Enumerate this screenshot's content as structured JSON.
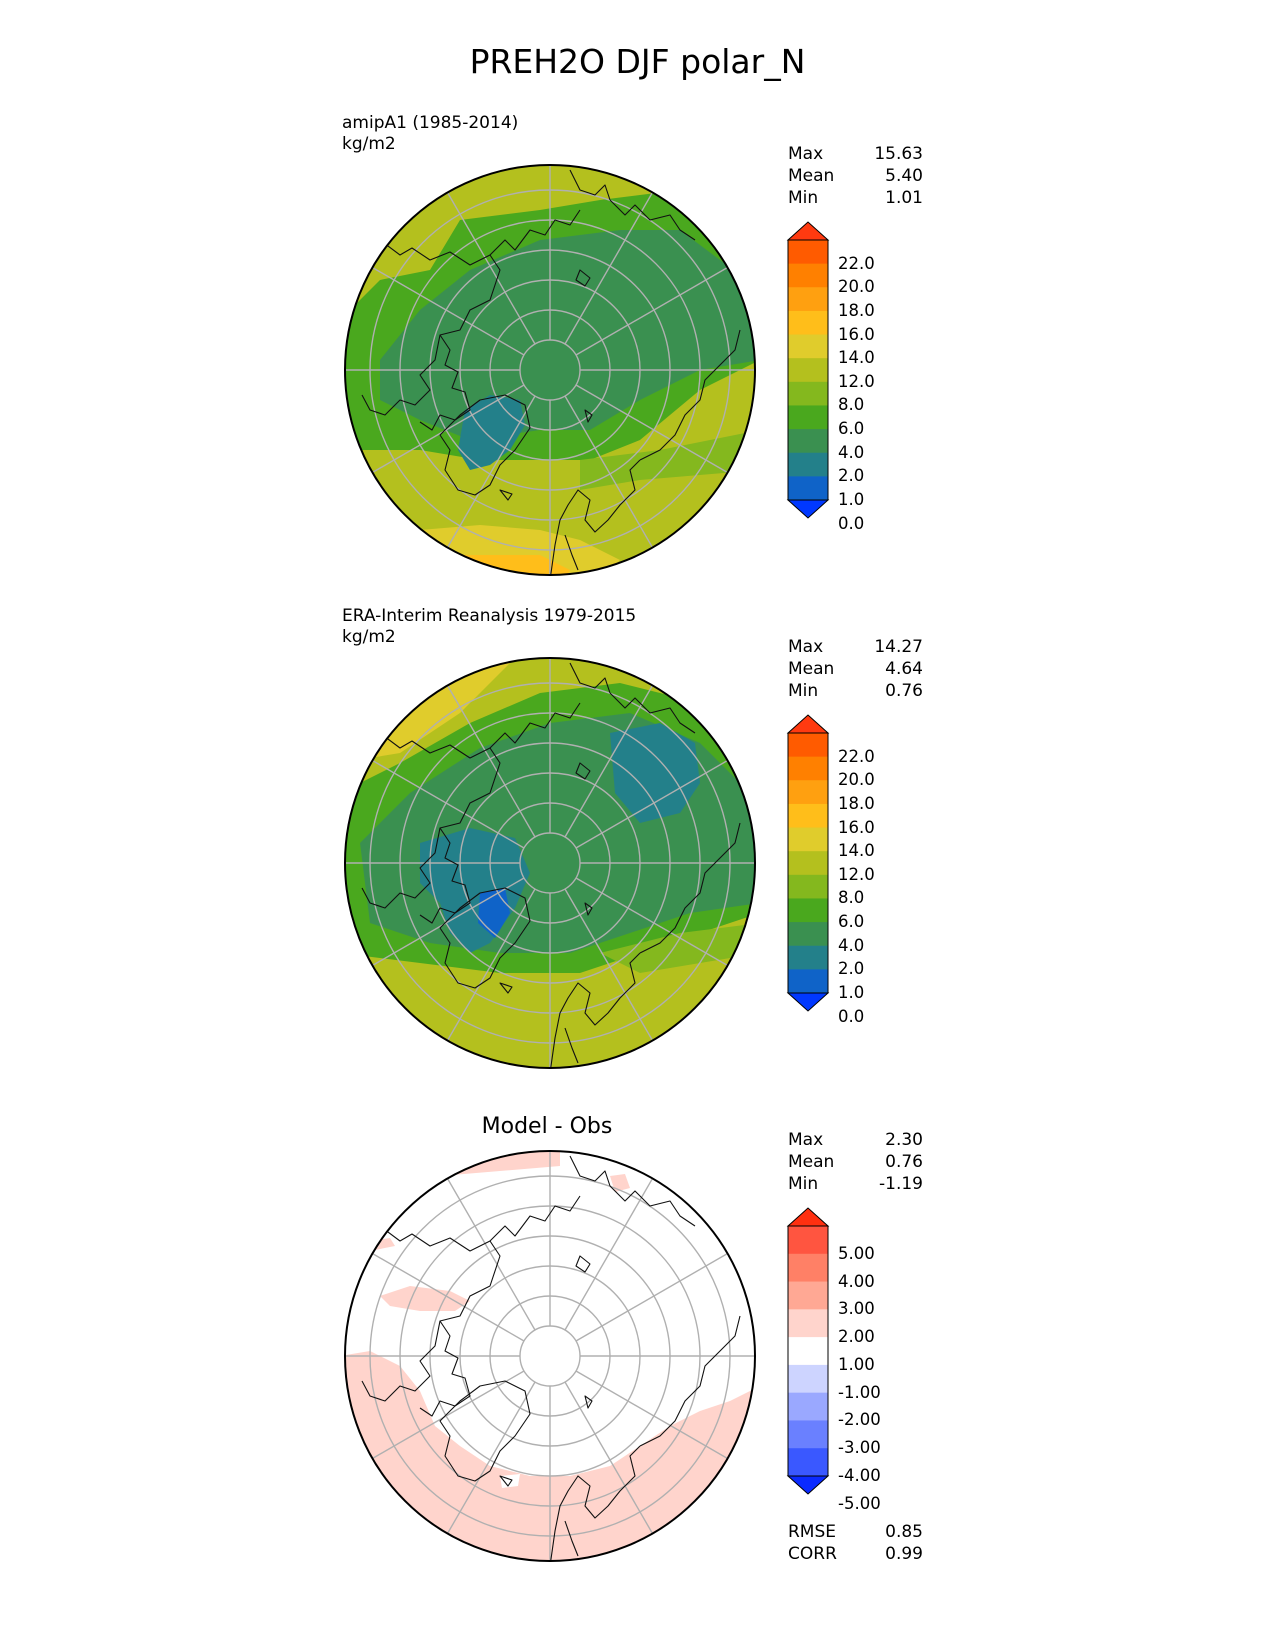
{
  "title": "PREH2O DJF polar_N",
  "panels": [
    {
      "id": "model",
      "label_lines": [
        "amipA1 (1985-2014)",
        "kg/m2"
      ],
      "center_title": "",
      "stats": [
        {
          "name": "Max",
          "value": "15.63"
        },
        {
          "name": "Mean",
          "value": "5.40"
        },
        {
          "name": "Min",
          "value": "1.01"
        }
      ],
      "colorbar": {
        "labels": [
          "22.0",
          "20.0",
          "18.0",
          "16.0",
          "14.0",
          "12.0",
          "8.0",
          "6.0",
          "4.0",
          "2.0",
          "1.0",
          "0.0"
        ],
        "colors": [
          "#ff3a10",
          "#ff5b00",
          "#ff8000",
          "#ffa010",
          "#ffbe1a",
          "#e0cc2c",
          "#b4c01e",
          "#84b81e",
          "#4aa81e",
          "#3a9050",
          "#23808a",
          "#0f63c8",
          "#0038ff"
        ]
      }
    },
    {
      "id": "obs",
      "label_lines": [
        "ERA-Interim Reanalysis 1979-2015",
        "kg/m2"
      ],
      "center_title": "",
      "stats": [
        {
          "name": "Max",
          "value": "14.27"
        },
        {
          "name": "Mean",
          "value": "4.64"
        },
        {
          "name": "Min",
          "value": "0.76"
        }
      ],
      "colorbar": {
        "labels": [
          "22.0",
          "20.0",
          "18.0",
          "16.0",
          "14.0",
          "12.0",
          "8.0",
          "6.0",
          "4.0",
          "2.0",
          "1.0",
          "0.0"
        ],
        "colors": [
          "#ff3a10",
          "#ff5b00",
          "#ff8000",
          "#ffa010",
          "#ffbe1a",
          "#e0cc2c",
          "#b4c01e",
          "#84b81e",
          "#4aa81e",
          "#3a9050",
          "#23808a",
          "#0f63c8",
          "#0038ff"
        ]
      }
    },
    {
      "id": "diff",
      "label_lines": [],
      "center_title": "Model - Obs",
      "stats": [
        {
          "name": "Max",
          "value": "2.30"
        },
        {
          "name": "Mean",
          "value": "0.76"
        },
        {
          "name": "Min",
          "value": "-1.19"
        }
      ],
      "extra_stats": [
        {
          "name": "RMSE",
          "value": "0.85"
        },
        {
          "name": "CORR",
          "value": "0.99"
        }
      ],
      "colorbar": {
        "labels": [
          "5.00",
          "4.00",
          "3.00",
          "2.00",
          "1.00",
          "-1.00",
          "-2.00",
          "-3.00",
          "-4.00",
          "-5.00"
        ],
        "colors": [
          "#ff3010",
          "#ff5540",
          "#ff8066",
          "#ffa894",
          "#ffd4cc",
          "#ffffff",
          "#cdd4ff",
          "#9aa8ff",
          "#6a80ff",
          "#3a58ff",
          "#0a2aff"
        ]
      }
    }
  ],
  "chart_data": [
    {
      "type": "heatmap",
      "title": "PREH2O DJF polar_N",
      "subtitle": "amipA1 (1985-2014)",
      "units": "kg/m2",
      "projection": "north polar stereographic",
      "levels": [
        0.0,
        1.0,
        2.0,
        4.0,
        6.0,
        8.0,
        12.0,
        14.0,
        16.0,
        18.0,
        20.0,
        22.0
      ],
      "max": 15.63,
      "mean": 5.4,
      "min": 1.01
    },
    {
      "type": "heatmap",
      "subtitle": "ERA-Interim Reanalysis 1979-2015",
      "units": "kg/m2",
      "projection": "north polar stereographic",
      "levels": [
        0.0,
        1.0,
        2.0,
        4.0,
        6.0,
        8.0,
        12.0,
        14.0,
        16.0,
        18.0,
        20.0,
        22.0
      ],
      "max": 14.27,
      "mean": 4.64,
      "min": 0.76
    },
    {
      "type": "heatmap",
      "subtitle": "Model - Obs",
      "projection": "north polar stereographic",
      "levels": [
        -5.0,
        -4.0,
        -3.0,
        -2.0,
        -1.0,
        1.0,
        2.0,
        3.0,
        4.0,
        5.0
      ],
      "max": 2.3,
      "mean": 0.76,
      "min": -1.19,
      "rmse": 0.85,
      "corr": 0.99
    }
  ]
}
